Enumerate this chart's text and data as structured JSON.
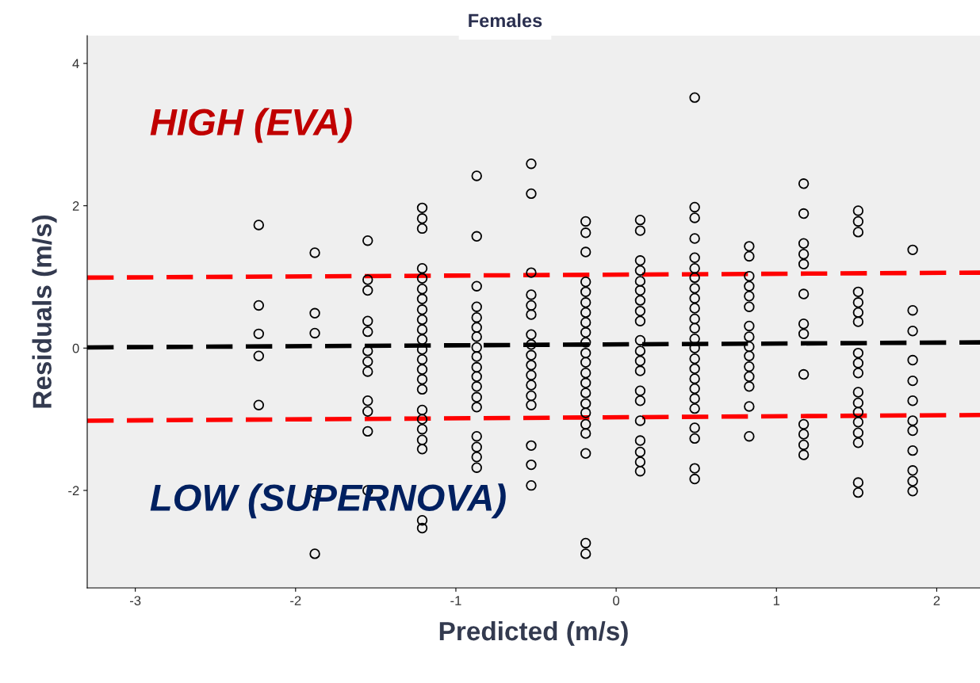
{
  "chart_data": {
    "type": "scatter",
    "title": "Females",
    "xlabel": "Predicted (m/s)",
    "ylabel": "Residuals (m/s)",
    "xlim": [
      -3.3,
      2.27
    ],
    "ylim": [
      -3.37,
      4.39
    ],
    "xticks": [
      {
        "value": -3,
        "label": "-3"
      },
      {
        "value": -2,
        "label": "-2"
      },
      {
        "value": -1,
        "label": "-1"
      },
      0,
      1,
      2
    ],
    "yticks": [
      {
        "value": -2,
        "label": "-2"
      },
      0,
      2,
      4
    ],
    "grid": false,
    "legend": false,
    "marker": "circle",
    "annotations": [
      "HIGH (EVA)",
      "LOW (SUPERNOVA)"
    ],
    "series": [
      {
        "color": "#000000",
        "x": [
          -2.23,
          -2.23,
          -2.23,
          -2.23,
          -2.23,
          -1.88,
          -1.88,
          -1.88,
          -1.88,
          -1.88,
          -1.55,
          -1.55,
          -1.55,
          -1.55,
          -1.55,
          -1.55,
          -1.55,
          -1.55,
          -1.55,
          -1.55,
          -1.55,
          -1.55,
          -1.21,
          -1.21,
          -1.21,
          -1.21,
          -1.21,
          -1.21,
          -1.21,
          -1.21,
          -1.21,
          -1.21,
          -1.21,
          -1.21,
          -1.21,
          -1.21,
          -1.21,
          -1.21,
          -1.21,
          -1.21,
          -1.21,
          -1.21,
          -1.21,
          -1.21,
          -1.21,
          -0.87,
          -0.87,
          -0.87,
          -0.87,
          -0.87,
          -0.87,
          -0.87,
          -0.87,
          -0.87,
          -0.87,
          -0.87,
          -0.87,
          -0.87,
          -0.87,
          -0.87,
          -0.87,
          -0.87,
          -0.87,
          -0.53,
          -0.53,
          -0.53,
          -0.53,
          -0.53,
          -0.53,
          -0.53,
          -0.53,
          -0.53,
          -0.53,
          -0.53,
          -0.53,
          -0.53,
          -0.53,
          -0.53,
          -0.53,
          -0.53,
          -0.19,
          -0.19,
          -0.19,
          -0.19,
          -0.19,
          -0.19,
          -0.19,
          -0.19,
          -0.19,
          -0.19,
          -0.19,
          -0.19,
          -0.19,
          -0.19,
          -0.19,
          -0.19,
          -0.19,
          -0.19,
          -0.19,
          -0.19,
          -0.19,
          -0.19,
          0.15,
          0.15,
          0.15,
          0.15,
          0.15,
          0.15,
          0.15,
          0.15,
          0.15,
          0.15,
          0.15,
          0.15,
          0.15,
          0.15,
          0.15,
          0.15,
          0.15,
          0.15,
          0.15,
          0.15,
          0.49,
          0.49,
          0.49,
          0.49,
          0.49,
          0.49,
          0.49,
          0.49,
          0.49,
          0.49,
          0.49,
          0.49,
          0.49,
          0.49,
          0.49,
          0.49,
          0.49,
          0.49,
          0.49,
          0.49,
          0.49,
          0.49,
          0.49,
          0.49,
          0.83,
          0.83,
          0.83,
          0.83,
          0.83,
          0.83,
          0.83,
          0.83,
          0.83,
          0.83,
          0.83,
          0.83,
          0.83,
          0.83,
          0.83,
          1.17,
          1.17,
          1.17,
          1.17,
          1.17,
          1.17,
          1.17,
          1.17,
          1.17,
          1.17,
          1.17,
          1.17,
          1.17,
          1.51,
          1.51,
          1.51,
          1.51,
          1.51,
          1.51,
          1.51,
          1.51,
          1.51,
          1.51,
          1.51,
          1.51,
          1.51,
          1.51,
          1.51,
          1.51,
          1.51,
          1.51,
          1.85,
          1.85,
          1.85,
          1.85,
          1.85,
          1.85,
          1.85,
          1.85,
          1.85,
          1.85,
          1.85,
          1.85
        ],
        "values": [
          1.73,
          0.6,
          0.2,
          -0.11,
          -0.8,
          1.34,
          0.49,
          0.21,
          -2.04,
          -2.89,
          1.51,
          0.96,
          0.81,
          0.38,
          0.23,
          -0.04,
          -0.19,
          -0.33,
          -0.74,
          -0.89,
          -1.17,
          -2.0,
          1.97,
          1.82,
          1.68,
          1.12,
          0.98,
          0.83,
          0.69,
          0.54,
          0.4,
          0.26,
          0.12,
          -0.02,
          -0.16,
          -0.3,
          -0.44,
          -0.58,
          -0.87,
          -1.0,
          -1.14,
          -1.29,
          -1.42,
          -2.42,
          -2.53,
          2.42,
          1.57,
          0.87,
          0.58,
          0.43,
          0.29,
          0.16,
          0.01,
          -0.12,
          -0.27,
          -0.4,
          -0.54,
          -0.69,
          -0.83,
          -1.24,
          -1.39,
          -1.53,
          -1.68,
          2.59,
          2.17,
          1.06,
          0.75,
          0.6,
          0.47,
          0.19,
          0.05,
          -0.1,
          -0.24,
          -0.38,
          -0.52,
          -0.67,
          -0.8,
          -1.37,
          -1.64,
          -1.93,
          1.78,
          1.62,
          1.35,
          0.93,
          0.79,
          0.64,
          0.5,
          0.36,
          0.22,
          0.08,
          -0.07,
          -0.2,
          -0.35,
          -0.49,
          -0.63,
          -0.78,
          -0.91,
          -1.07,
          -1.2,
          -1.48,
          -2.74,
          -2.89,
          1.8,
          1.65,
          1.23,
          1.09,
          0.94,
          0.81,
          0.67,
          0.52,
          0.38,
          0.11,
          -0.04,
          -0.18,
          -0.32,
          -0.6,
          -0.74,
          -1.02,
          -1.3,
          -1.46,
          -1.6,
          -1.73,
          3.52,
          1.98,
          1.83,
          1.54,
          1.27,
          1.12,
          0.99,
          0.84,
          0.7,
          0.56,
          0.41,
          0.28,
          0.13,
          0.0,
          -0.15,
          -0.29,
          -0.43,
          -0.57,
          -0.71,
          -0.85,
          -1.12,
          -1.27,
          -1.69,
          -1.84,
          1.43,
          1.29,
          1.01,
          0.87,
          0.73,
          0.58,
          0.31,
          0.16,
          0.02,
          -0.11,
          -0.26,
          -0.4,
          -0.54,
          -0.82,
          -1.24,
          2.31,
          1.89,
          1.47,
          1.32,
          1.18,
          0.76,
          0.34,
          0.2,
          -0.37,
          -1.07,
          -1.21,
          -1.36,
          -1.5,
          1.93,
          1.78,
          1.63,
          0.79,
          0.64,
          0.5,
          0.37,
          -0.07,
          -0.21,
          -0.35,
          -0.62,
          -0.77,
          -0.9,
          -1.04,
          -1.19,
          -1.33,
          -1.89,
          -2.03,
          1.38,
          0.53,
          0.24,
          -0.17,
          -0.46,
          -0.74,
          -1.02,
          -1.16,
          -1.44,
          -1.72,
          -1.87,
          -2.01
        ]
      },
      {
        "type": "line",
        "color": "#ff0000",
        "line_style": "dashed",
        "marker": "none",
        "x": [
          -3.3,
          2.27
        ],
        "values": [
          0.99,
          1.06
        ]
      },
      {
        "type": "line",
        "color": "#000000",
        "line_style": "dashed",
        "marker": "none",
        "x": [
          -3.3,
          2.27
        ],
        "values": [
          0.01,
          0.08
        ]
      },
      {
        "type": "line",
        "color": "#ff0000",
        "line_style": "dashed",
        "marker": "none",
        "x": [
          -3.3,
          2.27
        ],
        "values": [
          -1.02,
          -0.94
        ]
      }
    ]
  }
}
